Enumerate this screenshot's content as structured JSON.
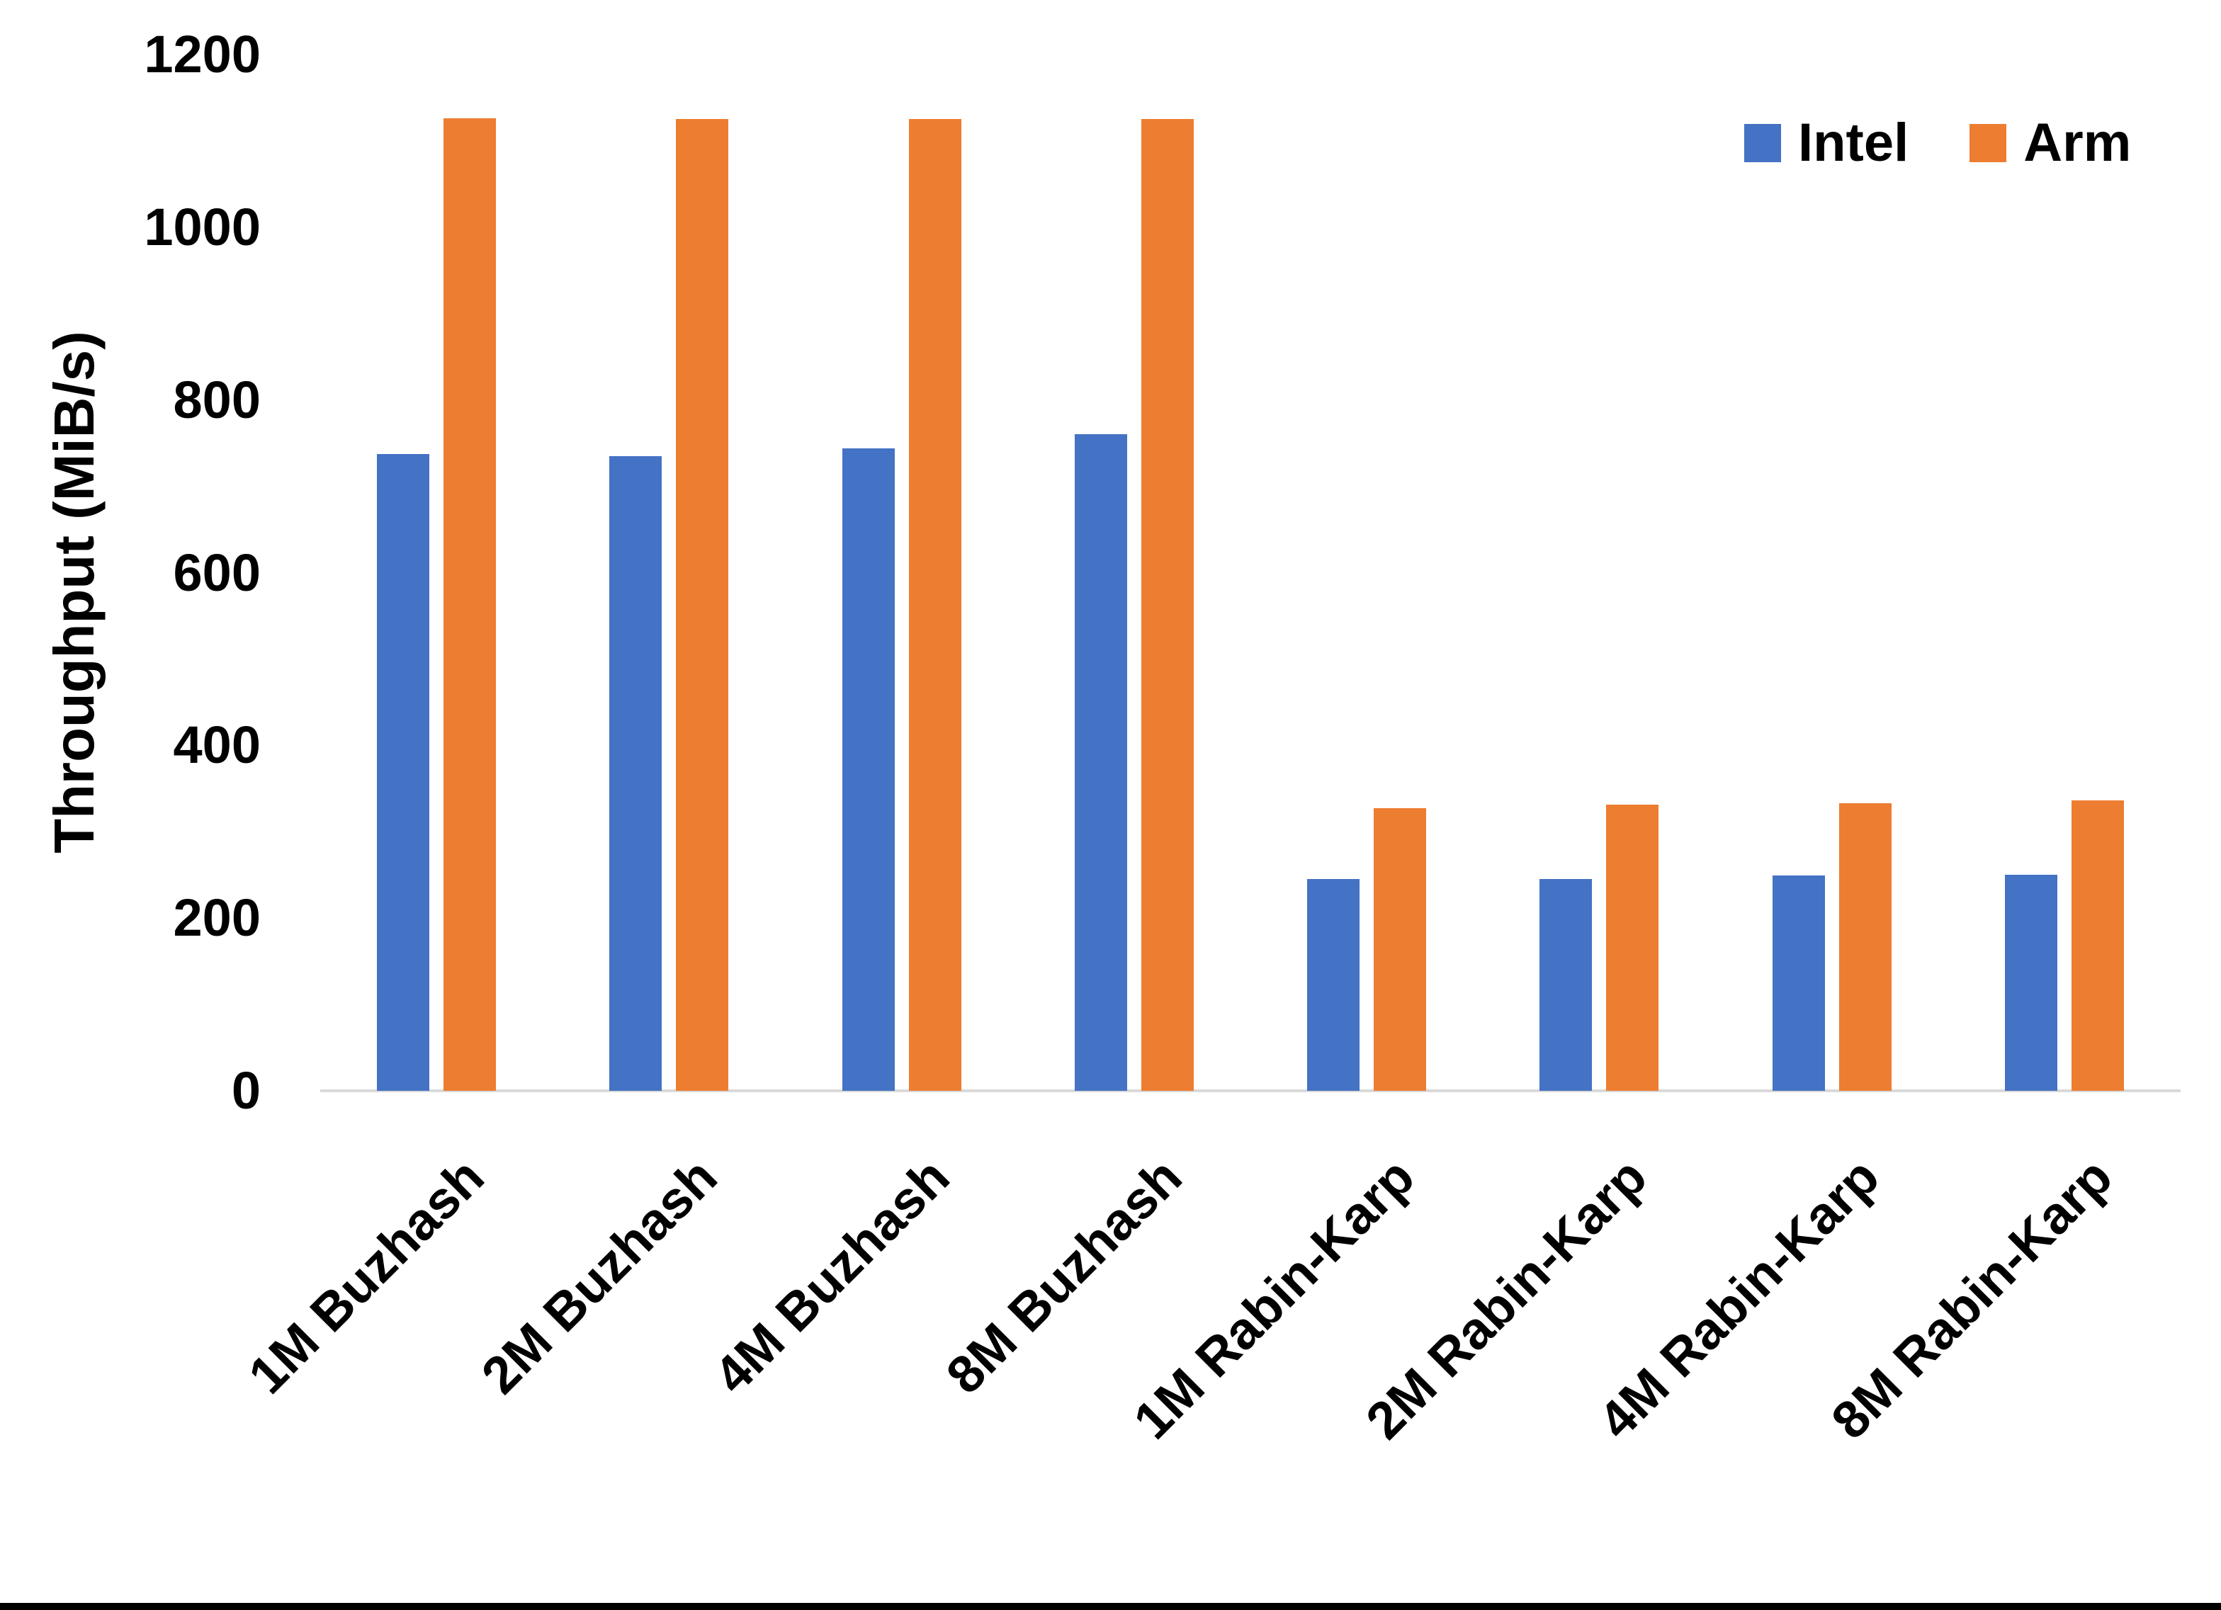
{
  "chart_data": {
    "type": "bar",
    "title": "",
    "xlabel": "",
    "ylabel": "Throughput (MiB/s)",
    "categories": [
      "1M Buzhash",
      "2M Buzhash",
      "4M Buzhash",
      "8M Buzhash",
      "1M Rabin-Karp",
      "2M Rabin-Karp",
      "4M Rabin-Karp",
      "8M Rabin-Karp"
    ],
    "series": [
      {
        "name": "Intel",
        "color": "#4472C4",
        "values": [
          737,
          735,
          744,
          760,
          245,
          245,
          249,
          250
        ]
      },
      {
        "name": "Arm",
        "color": "#ED7D31",
        "values": [
          1126,
          1125,
          1125,
          1125,
          327,
          331,
          333,
          336
        ]
      }
    ],
    "ylim": [
      0,
      1200
    ],
    "yticks": [
      0,
      200,
      400,
      600,
      800,
      1000,
      1200
    ],
    "grid": false,
    "legend_position": "top-right",
    "axis_line_color": "#D9D9D9",
    "text_color": "#000000",
    "background": "#FFFFFF"
  }
}
